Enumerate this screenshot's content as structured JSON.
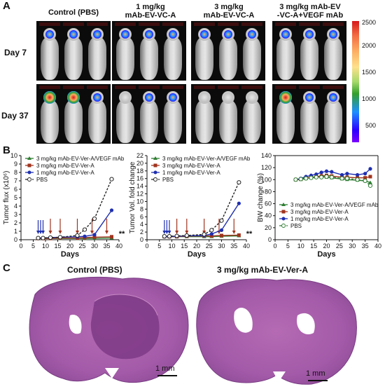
{
  "panels": {
    "A": "A",
    "B": "B",
    "C": "C"
  },
  "panelA": {
    "columns": [
      "Control (PBS)",
      "1 mg/kg\nmAb-EV-VC-A",
      "3 mg/kg\nmAb-EV-VC-A",
      "3 mg/kg mAb-EV\n-VC-A+VEGF mAb"
    ],
    "rows": [
      "Day 7",
      "Day 37"
    ],
    "colorbar_ticks": [
      "2500",
      "2000",
      "1500",
      "1000",
      "500"
    ],
    "colors": {
      "high": "#d7191c",
      "mid_high": "#fdae61",
      "mid": "#33a02c",
      "mid_low": "#1e90ff",
      "low": "#2b00ff"
    }
  },
  "chart_data": [
    {
      "type": "line",
      "xlabel": "Days",
      "ylabel": "Tumor flux (x10⁶)",
      "xlim": [
        0,
        40
      ],
      "ylim": [
        0,
        10
      ],
      "xticks": [
        0,
        5,
        10,
        15,
        20,
        25,
        30,
        35,
        40
      ],
      "yticks": [
        0,
        1,
        2,
        3,
        4,
        5,
        6,
        7,
        8,
        9,
        10
      ],
      "legend": "top-left",
      "annotation": "**",
      "series": [
        {
          "name": "3 mg/kg mAb-EV-Ver-A/VEGF mAb",
          "color": "#2e7d32",
          "marker": "triangle",
          "x": [
            7,
            9,
            12,
            16,
            23,
            26,
            30,
            37
          ],
          "y": [
            0.15,
            0.15,
            0.15,
            0.15,
            0.15,
            0.15,
            0.15,
            0.2
          ]
        },
        {
          "name": "3 mg/kg mAb-EV-Ver-A",
          "color": "#a0341f",
          "marker": "square",
          "x": [
            7,
            9,
            12,
            16,
            23,
            26,
            30,
            37
          ],
          "y": [
            0.15,
            0.15,
            0.15,
            0.2,
            0.2,
            0.25,
            0.3,
            0.35
          ]
        },
        {
          "name": "1 mg/kg mAb-EV-Ver-A",
          "color": "#1f2fb0",
          "marker": "circle",
          "x": [
            7,
            9,
            12,
            16,
            23,
            26,
            30,
            37
          ],
          "y": [
            0.2,
            0.2,
            0.25,
            0.3,
            0.35,
            0.4,
            0.6,
            3.5
          ]
        },
        {
          "name": "PBS",
          "color": "#222222",
          "marker": "open-circle",
          "dashed": true,
          "x": [
            7,
            9,
            12,
            16,
            23,
            26,
            30,
            37
          ],
          "y": [
            0.2,
            0.2,
            0.25,
            0.3,
            0.5,
            1.2,
            2.5,
            7.2
          ]
        }
      ],
      "arrows": [
        {
          "x": 7,
          "color": "#1f2fb0"
        },
        {
          "x": 8,
          "color": "#1f2fb0"
        },
        {
          "x": 9,
          "color": "#1f2fb0"
        },
        {
          "x": 12,
          "color": "#a0341f"
        },
        {
          "x": 16,
          "color": "#a0341f"
        },
        {
          "x": 23,
          "color": "#a0341f"
        },
        {
          "x": 29,
          "color": "#a0341f"
        },
        {
          "x": 35,
          "color": "#a0341f"
        }
      ]
    },
    {
      "type": "line",
      "xlabel": "Days",
      "ylabel": "Tumor Vol. fold change",
      "xlim": [
        0,
        40
      ],
      "ylim": [
        0,
        22
      ],
      "xticks": [
        0,
        5,
        10,
        15,
        20,
        25,
        30,
        35,
        40
      ],
      "yticks": [
        0,
        2,
        4,
        6,
        8,
        10,
        12,
        14,
        16,
        18,
        20,
        22
      ],
      "legend": "top-left",
      "annotation": "**",
      "series": [
        {
          "name": "3 mg/kg mAb-EV-Ver-A/VEGF mAb",
          "color": "#2e7d32",
          "marker": "triangle",
          "x": [
            7,
            9,
            12,
            16,
            23,
            26,
            30,
            37
          ],
          "y": [
            0.8,
            0.8,
            0.8,
            0.8,
            0.8,
            0.8,
            0.9,
            1.0
          ]
        },
        {
          "name": "3 mg/kg mAb-EV-Ver-A",
          "color": "#a0341f",
          "marker": "square",
          "x": [
            7,
            9,
            12,
            16,
            23,
            26,
            30,
            37
          ],
          "y": [
            0.8,
            0.8,
            0.8,
            0.9,
            1.0,
            1.0,
            1.1,
            1.2
          ]
        },
        {
          "name": "1 mg/kg mAb-EV-Ver-A",
          "color": "#1f2fb0",
          "marker": "circle",
          "x": [
            7,
            9,
            12,
            16,
            23,
            26,
            30,
            37
          ],
          "y": [
            0.8,
            0.8,
            0.9,
            1.0,
            1.1,
            1.5,
            2.5,
            9.5
          ]
        },
        {
          "name": "PBS",
          "color": "#222222",
          "marker": "open-circle",
          "dashed": true,
          "x": [
            7,
            9,
            12,
            16,
            23,
            26,
            30,
            37
          ],
          "y": [
            0.9,
            0.9,
            1.0,
            1.1,
            1.4,
            2.5,
            5.0,
            15.0
          ]
        }
      ],
      "arrows": [
        {
          "x": 7,
          "color": "#1f2fb0"
        },
        {
          "x": 8,
          "color": "#1f2fb0"
        },
        {
          "x": 9,
          "color": "#1f2fb0"
        },
        {
          "x": 12,
          "color": "#a0341f"
        },
        {
          "x": 16,
          "color": "#a0341f"
        },
        {
          "x": 23,
          "color": "#a0341f"
        },
        {
          "x": 29,
          "color": "#a0341f"
        },
        {
          "x": 35,
          "color": "#a0341f"
        }
      ]
    },
    {
      "type": "line",
      "xlabel": "Days",
      "ylabel": "BW change (%)",
      "xlim": [
        0,
        40
      ],
      "ylim": [
        0,
        140
      ],
      "xticks": [
        0,
        5,
        10,
        15,
        20,
        25,
        30,
        35,
        40
      ],
      "yticks": [
        0,
        20,
        40,
        60,
        80,
        100,
        120,
        140
      ],
      "legend": "bottom-left",
      "series": [
        {
          "name": "3 mg/kg mAb-EV-Ver-A/VEGF mAb",
          "color": "#2e7d32",
          "marker": "triangle",
          "x": [
            8,
            10,
            12,
            14,
            16,
            18,
            20,
            22,
            26,
            28,
            32,
            35,
            37
          ],
          "y": [
            100,
            100,
            102,
            103,
            104,
            105,
            104,
            103,
            101,
            100,
            99,
            98,
            95
          ]
        },
        {
          "name": "3 mg/kg mAb-EV-Ver-A",
          "color": "#a0341f",
          "marker": "square",
          "x": [
            8,
            10,
            12,
            14,
            16,
            18,
            20,
            22,
            26,
            28,
            32,
            35,
            37
          ],
          "y": [
            100,
            101,
            103,
            104,
            105,
            106,
            107,
            106,
            104,
            104,
            103,
            103,
            105
          ]
        },
        {
          "name": "1 mg/kg mAb-EV-Ver-A",
          "color": "#1f2fb0",
          "marker": "circle",
          "x": [
            8,
            10,
            12,
            14,
            16,
            18,
            20,
            22,
            26,
            28,
            32,
            35,
            37
          ],
          "y": [
            100,
            102,
            105,
            107,
            109,
            112,
            114,
            113,
            108,
            110,
            108,
            110,
            118
          ]
        },
        {
          "name": "PBS",
          "color": "#2e7d32",
          "marker": "open-circle",
          "dashed": true,
          "x": [
            8,
            10,
            12,
            14,
            16,
            18,
            20,
            22,
            26,
            28,
            32,
            35,
            37
          ],
          "y": [
            100,
            101,
            102,
            103,
            104,
            104,
            105,
            104,
            102,
            102,
            100,
            98,
            90
          ]
        }
      ]
    }
  ],
  "panelC": {
    "titles": [
      "Control (PBS)",
      "3 mg/kg mAb-EV-Ver-A"
    ],
    "scale": "1 mm"
  }
}
